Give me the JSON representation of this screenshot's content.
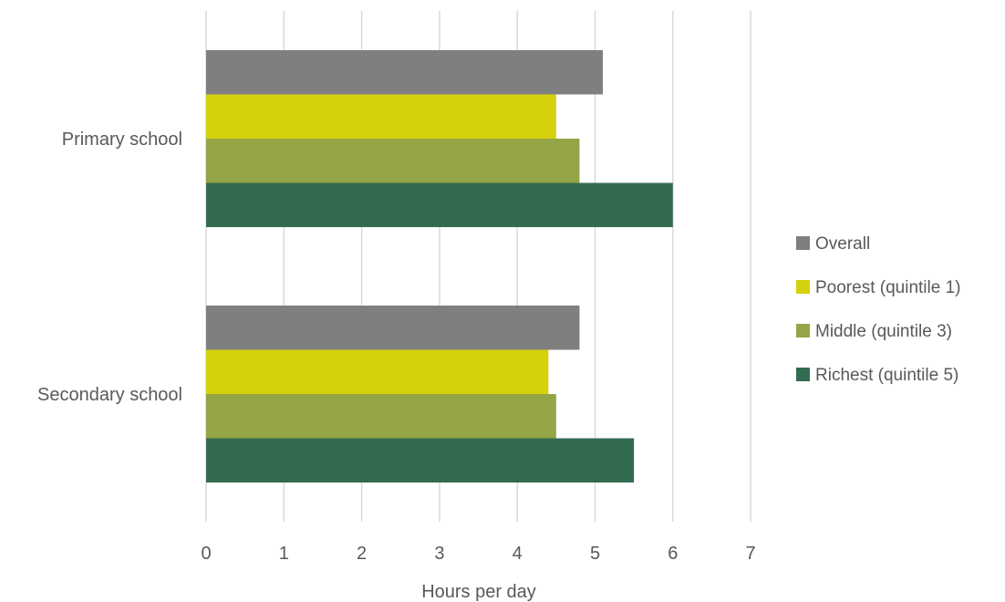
{
  "chart_data": {
    "type": "bar",
    "orientation": "horizontal",
    "categories": [
      "Primary school",
      "Secondary school"
    ],
    "series": [
      {
        "name": "Overall",
        "color": "#7f7f7f",
        "values": [
          5.1,
          4.8
        ]
      },
      {
        "name": "Poorest (quintile 1)",
        "color": "#d5d10c",
        "values": [
          4.5,
          4.4
        ]
      },
      {
        "name": "Middle (quintile 3)",
        "color": "#93a545",
        "values": [
          4.8,
          4.5
        ]
      },
      {
        "name": "Richest (quintile 5)",
        "color": "#336b50",
        "values": [
          6.0,
          5.5
        ]
      }
    ],
    "xlabel": "Hours per day",
    "ylabel": "",
    "xlim": [
      0,
      7
    ],
    "xticks": [
      "0",
      "1",
      "2",
      "3",
      "4",
      "5",
      "6",
      "7"
    ],
    "grid": true,
    "legend_position": "right"
  }
}
